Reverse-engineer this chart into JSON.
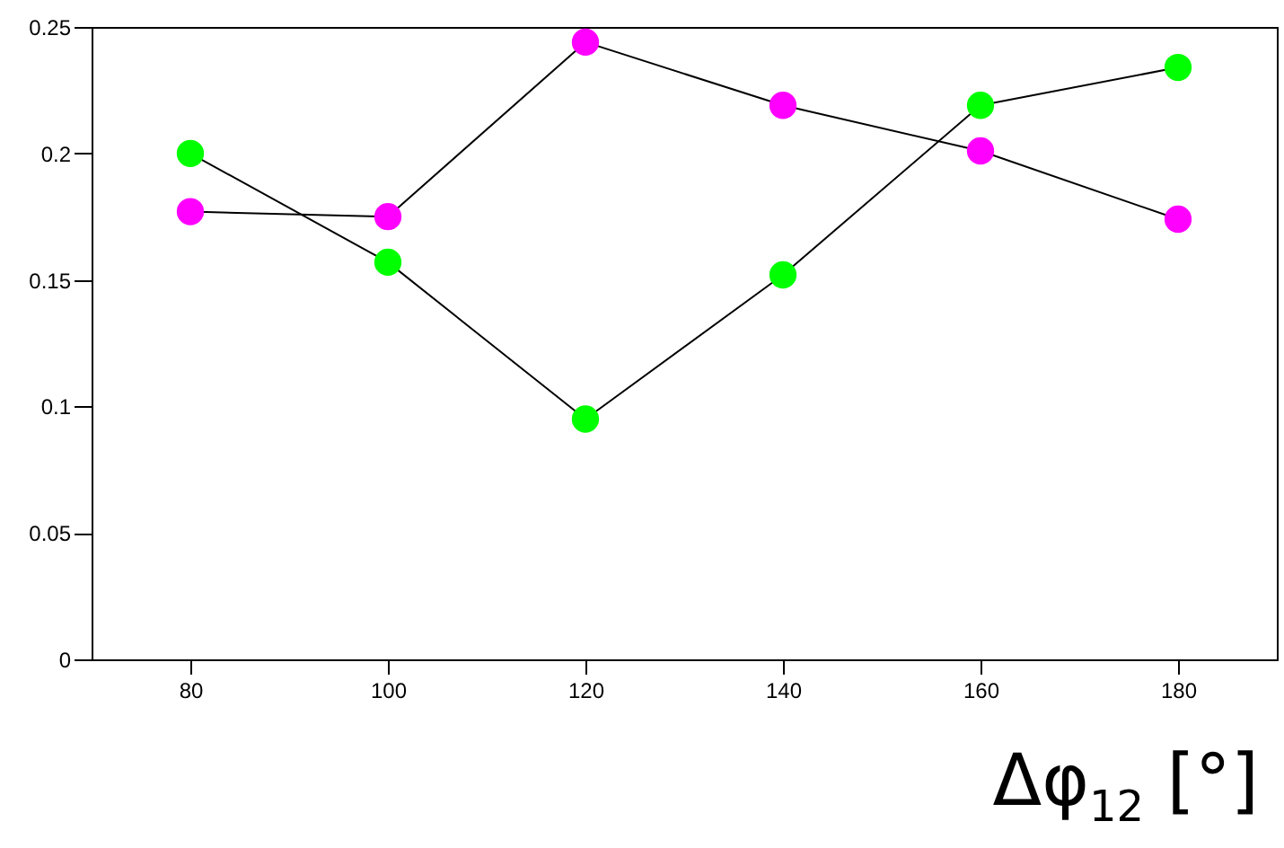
{
  "chart_data": {
    "type": "line",
    "xlabel": "Δφ$_{12}$ [°]",
    "x": [
      80,
      100,
      120,
      140,
      160,
      180
    ],
    "series": [
      {
        "color": "#00ff00",
        "values": [
          0.2,
          0.157,
          0.095,
          0.152,
          0.219,
          0.234
        ]
      },
      {
        "color": "#ff00ff",
        "values": [
          0.177,
          0.175,
          0.244,
          0.219,
          0.201,
          0.174
        ]
      }
    ],
    "xlim": [
      70,
      190
    ],
    "xticks": [
      80,
      100,
      120,
      140,
      160,
      180
    ],
    "ylim": [
      0,
      0.25
    ],
    "yticks": [
      0,
      0.05,
      0.1,
      0.15,
      0.2,
      0.25
    ],
    "grid": false,
    "marker": "circle",
    "line_style": "solid"
  }
}
